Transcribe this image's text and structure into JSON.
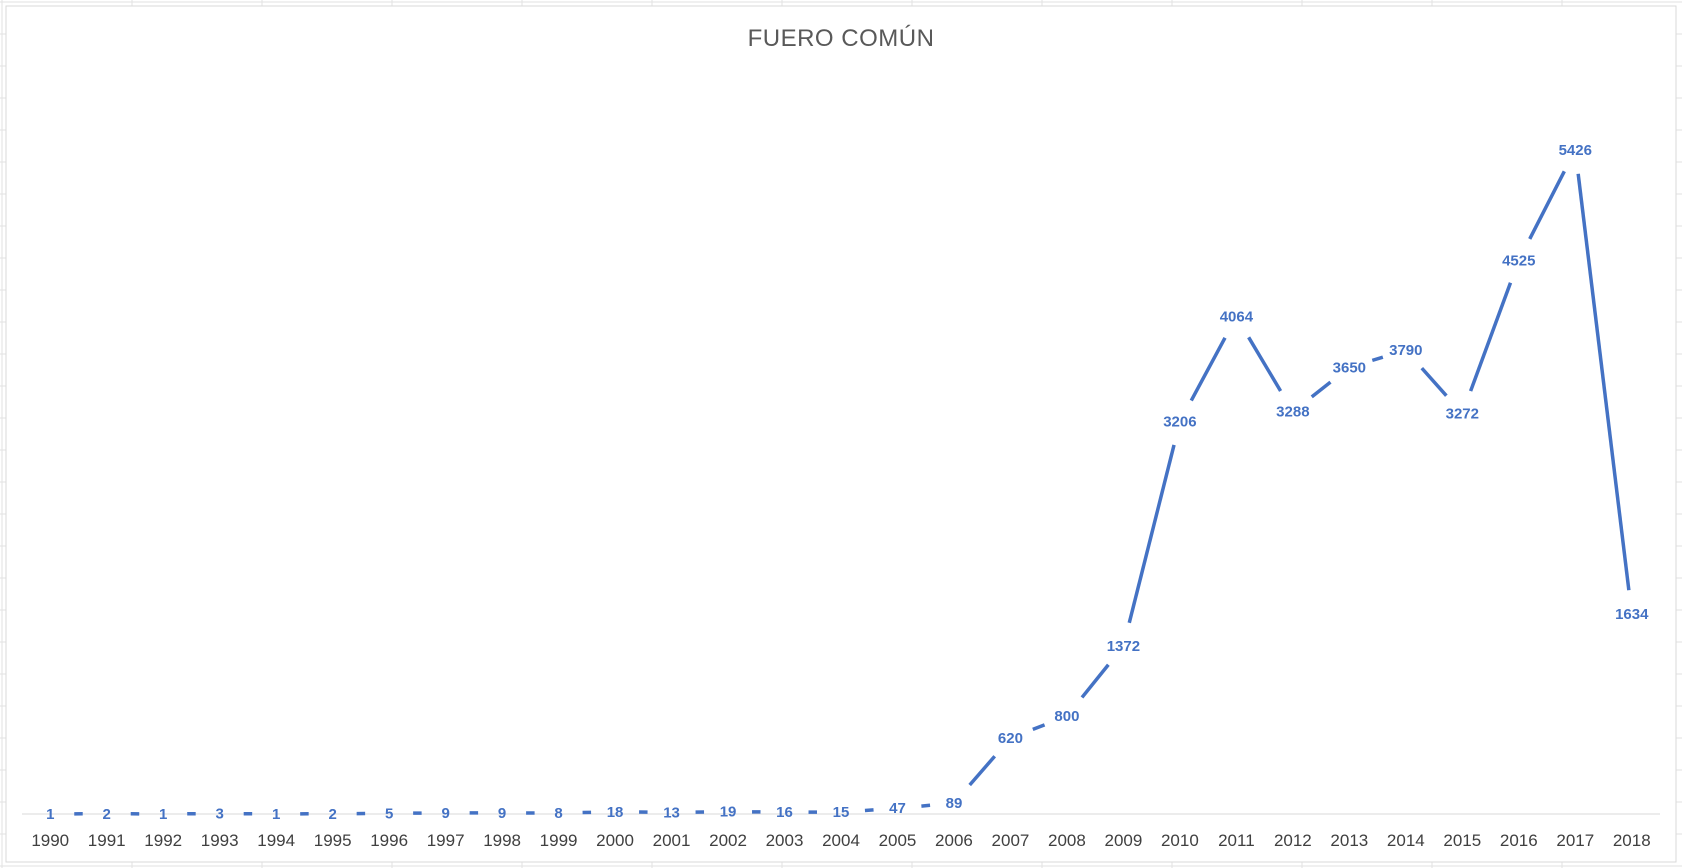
{
  "chart_data": {
    "type": "line",
    "title": "FUERO COMÚN",
    "xlabel": "",
    "ylabel": "",
    "categories": [
      "1990",
      "1991",
      "1992",
      "1993",
      "1994",
      "1995",
      "1996",
      "1997",
      "1998",
      "1999",
      "2000",
      "2001",
      "2002",
      "2003",
      "2004",
      "2005",
      "2006",
      "2007",
      "2008",
      "2009",
      "2010",
      "2011",
      "2012",
      "2013",
      "2014",
      "2015",
      "2016",
      "2017",
      "2018"
    ],
    "series": [
      {
        "values": [
          1,
          2,
          1,
          3,
          1,
          2,
          5,
          9,
          9,
          8,
          18,
          13,
          19,
          16,
          15,
          47,
          89,
          620,
          800,
          1372,
          3206,
          4064,
          3288,
          3650,
          3790,
          3272,
          4525,
          5426,
          1634
        ]
      }
    ],
    "ylim": [
      0,
      5900
    ],
    "grid": false,
    "legend": "none",
    "data_labels": true,
    "colors": {
      "series": "#4472c4",
      "title": "#595959",
      "ticks": "#404040"
    }
  }
}
